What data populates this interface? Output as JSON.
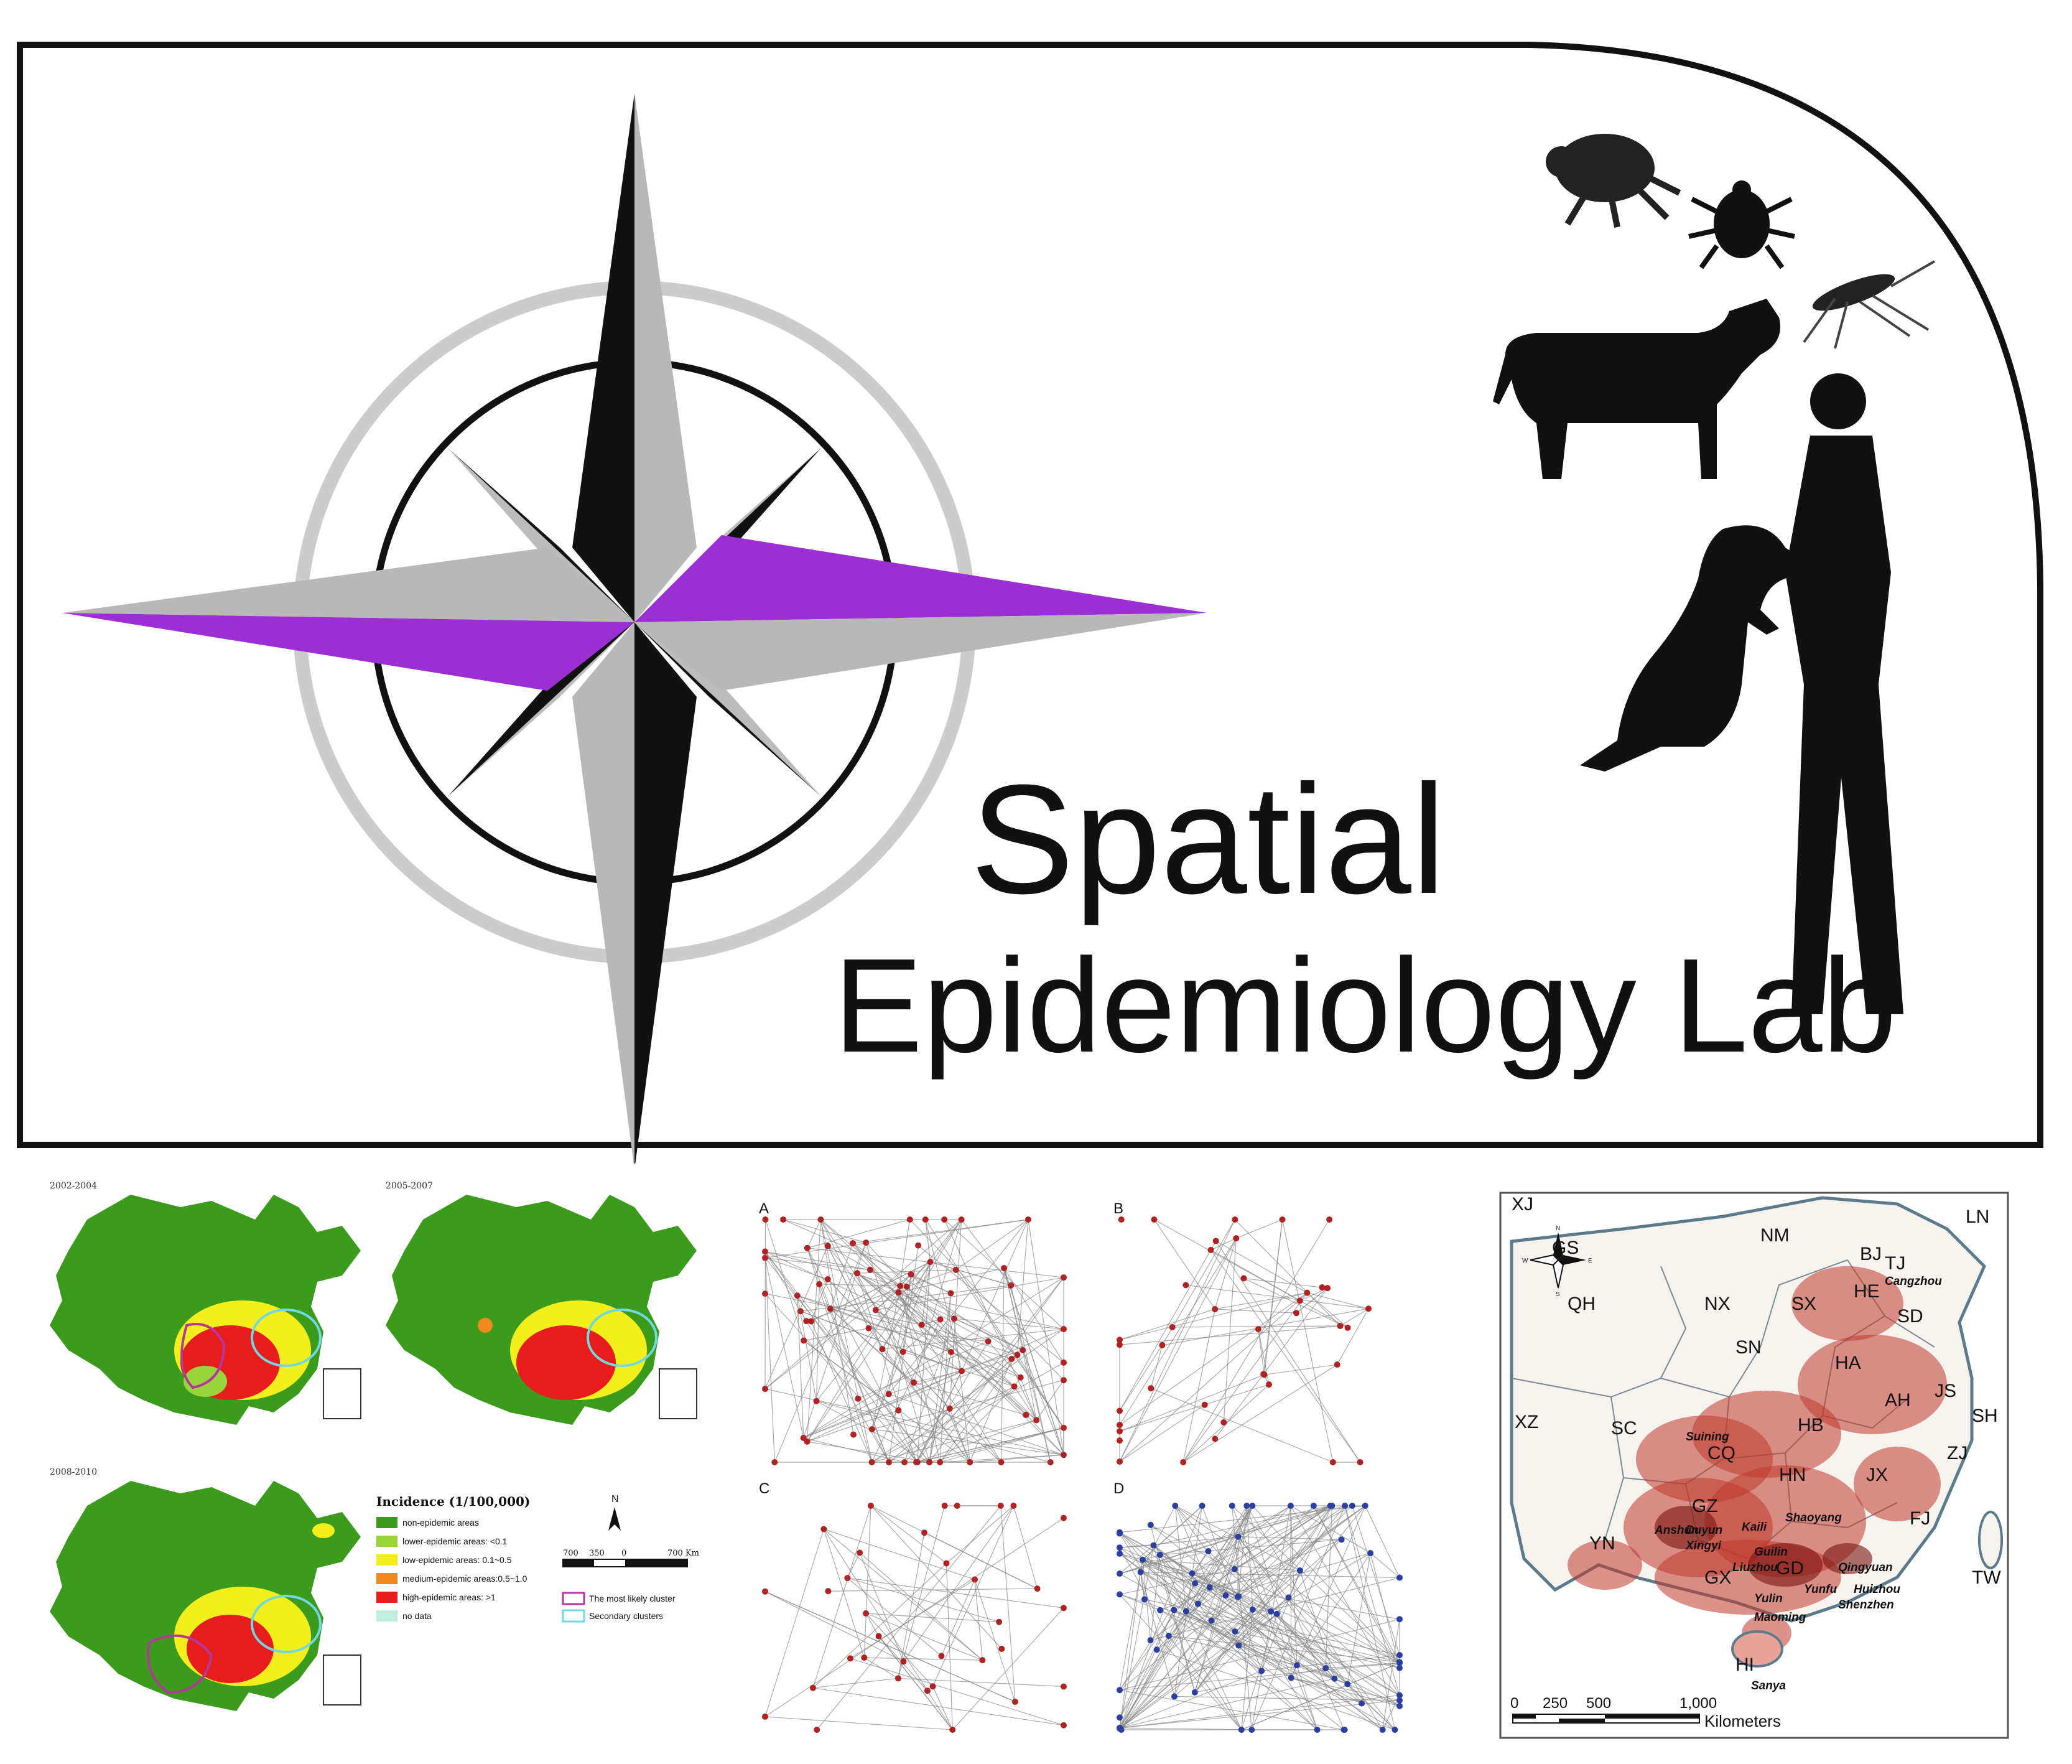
{
  "logo": {
    "title_line1": "Spatial",
    "title_line2": "Epidemiology Lab",
    "accent_color": "#9b2fd4",
    "icons": [
      "flea-icon",
      "tick-icon",
      "mosquito-icon",
      "cow-icon",
      "person-icon",
      "dog-icon",
      "compass-rose-icon"
    ]
  },
  "panel_maps": {
    "periods": [
      "2002-2004",
      "2005-2007",
      "2008-2010"
    ],
    "legend": {
      "title": "Incidence (1/100,000)",
      "items": [
        {
          "label": "non-epidemic areas",
          "color": "#3a9b1c"
        },
        {
          "label": "lower-epidemic areas: <0.1",
          "color": "#9ad43a"
        },
        {
          "label": "low-epidemic areas: 0.1~0.5",
          "color": "#f2ef1c"
        },
        {
          "label": "medium-epidemic areas:0.5~1.0",
          "color": "#f08a1c"
        },
        {
          "label": "high-epidemic areas: >1",
          "color": "#e81c1c"
        },
        {
          "label": "no data",
          "color": "#bfeedd"
        }
      ],
      "clusters": [
        {
          "label": "The most likely cluster",
          "color": "#b4389c"
        },
        {
          "label": "Secondary clusters",
          "color": "#6fd8e0"
        }
      ],
      "north": "N",
      "scale_labels": [
        "700",
        "350",
        "0",
        "700 Km"
      ]
    }
  },
  "panel_networks": {
    "labels": [
      "A",
      "B",
      "C",
      "D"
    ]
  },
  "panel_china_map": {
    "provinces": [
      "XJ",
      "GS",
      "NM",
      "LN",
      "BJ",
      "TJ",
      "HE",
      "SX",
      "QH",
      "NX",
      "SD",
      "SN",
      "HA",
      "JS",
      "AH",
      "SH",
      "XZ",
      "SC",
      "CQ",
      "HB",
      "ZJ",
      "HN",
      "JX",
      "GZ",
      "FJ",
      "YN",
      "GX",
      "GD",
      "TW",
      "HI"
    ],
    "cities": [
      "Cangzhou",
      "Suining",
      "Anshun",
      "Duyun",
      "Kaili",
      "Xingyi",
      "Shaoyang",
      "Guilin",
      "Liuzhou",
      "Qingyuan",
      "Yunfu",
      "Huizhou",
      "Yulin",
      "Shenzhen",
      "Maoming",
      "Sanya"
    ],
    "compass_letters": [
      "N",
      "W",
      "E",
      "S"
    ],
    "scale_labels": [
      "0",
      "250",
      "500",
      "1,000"
    ],
    "scale_unit": "Kilometers"
  }
}
